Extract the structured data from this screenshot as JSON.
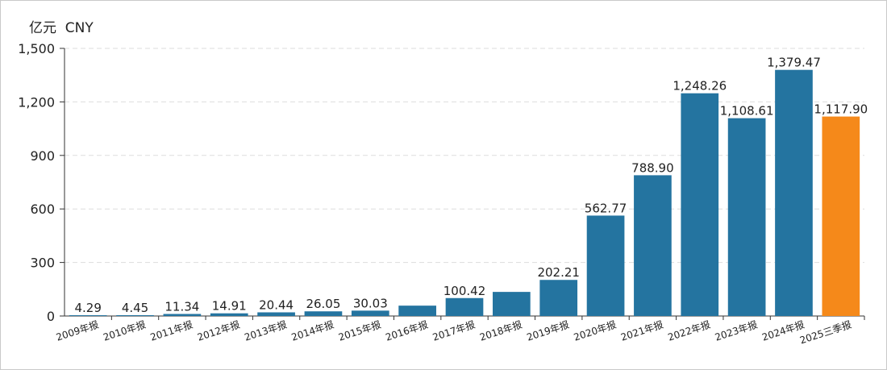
{
  "chart_data": {
    "type": "bar",
    "unit_label": "亿元  CNY",
    "categories": [
      "2009年报",
      "2010年报",
      "2011年报",
      "2012年报",
      "2013年报",
      "2014年报",
      "2015年报",
      "2016年报",
      "2017年报",
      "2018年报",
      "2019年报",
      "2020年报",
      "2021年报",
      "2022年报",
      "2023年报",
      "2024年报",
      "2025三季报"
    ],
    "values": [
      4.29,
      4.45,
      11.34,
      14.91,
      20.44,
      26.05,
      30.03,
      58,
      100.42,
      135,
      202.21,
      562.77,
      788.9,
      1248.26,
      1108.61,
      1379.47,
      1117.9
    ],
    "data_labels": [
      "4.29",
      "4.45",
      "11.34",
      "14.91",
      "20.44",
      "26.05",
      "30.03",
      "",
      "100.42",
      "",
      "202.21",
      "562.77",
      "788.90",
      "1,248.26",
      "1,108.61",
      "1,379.47",
      "1,117.90"
    ],
    "yticks": [
      0,
      300,
      600,
      900,
      1200,
      1500
    ],
    "ytick_labels": [
      "0",
      "300",
      "600",
      "900",
      "1,200",
      "1,500"
    ],
    "ylim": [
      0,
      1500
    ],
    "grid": true,
    "colors": {
      "bar": "#2474a0",
      "highlight": "#f5891a",
      "grid": "#dddddd",
      "axis": "#333333"
    },
    "highlight_index": 16
  }
}
